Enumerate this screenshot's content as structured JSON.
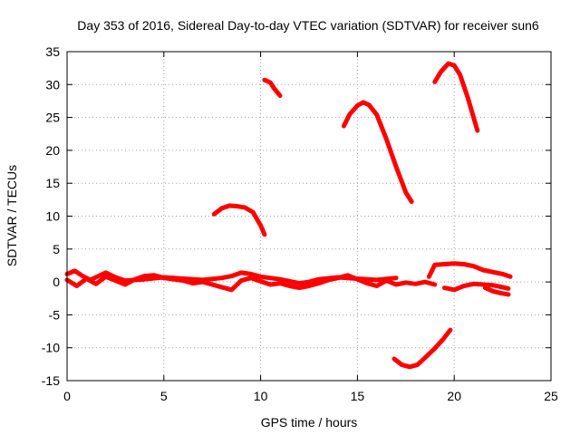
{
  "chart_data": {
    "type": "line",
    "title": "Day 353 of 2016, Sidereal Day-to-day VTEC variation (SDTVAR) for receiver sun6",
    "xlabel": "GPS time / hours",
    "ylabel": "SDTVAR / TECUs",
    "xlim": [
      0,
      25
    ],
    "ylim": [
      -15,
      35
    ],
    "xticks": [
      0,
      5,
      10,
      15,
      20,
      25
    ],
    "yticks": [
      -15,
      -10,
      -5,
      0,
      5,
      10,
      15,
      20,
      25,
      30,
      35
    ],
    "grid": true,
    "series_color": "#ff0000",
    "series": [
      {
        "name": "arc-baseline-a",
        "points": [
          [
            0,
            0.3
          ],
          [
            0.5,
            -0.6
          ],
          [
            1,
            0.5
          ],
          [
            1.5,
            -0.3
          ],
          [
            2,
            0.8
          ],
          [
            2.5,
            0.2
          ],
          [
            3,
            -0.4
          ],
          [
            3.5,
            0.4
          ],
          [
            4,
            0.9
          ],
          [
            4.5,
            1.0
          ],
          [
            5,
            0.6
          ],
          [
            5.5,
            0.4
          ],
          [
            6,
            0.2
          ],
          [
            6.5,
            -0.2
          ],
          [
            7,
            0.0
          ],
          [
            7.5,
            -0.4
          ],
          [
            8,
            -0.8
          ],
          [
            8.5,
            -1.2
          ],
          [
            9,
            0.2
          ],
          [
            9.5,
            0.6
          ],
          [
            10,
            0.1
          ],
          [
            10.5,
            -0.4
          ],
          [
            11,
            -0.2
          ],
          [
            11.5,
            -0.6
          ],
          [
            12,
            -0.9
          ],
          [
            12.5,
            -0.6
          ],
          [
            13,
            -0.2
          ],
          [
            13.5,
            0.3
          ],
          [
            14,
            0.6
          ],
          [
            14.5,
            1.0
          ],
          [
            15,
            0.4
          ],
          [
            15.5,
            -0.2
          ],
          [
            16,
            -0.6
          ],
          [
            16.5,
            0.2
          ],
          [
            17,
            -0.4
          ],
          [
            17.5,
            -0.1
          ],
          [
            18,
            -0.3
          ],
          [
            18.5,
            0.0
          ],
          [
            19,
            -0.4
          ]
        ]
      },
      {
        "name": "arc-baseline-b",
        "points": [
          [
            0,
            1.2
          ],
          [
            0.4,
            1.7
          ],
          [
            0.8,
            0.9
          ],
          [
            1.2,
            0.3
          ],
          [
            2,
            1.4
          ],
          [
            2.5,
            0.7
          ],
          [
            3,
            0.2
          ],
          [
            4,
            0.4
          ],
          [
            5,
            0.7
          ],
          [
            6,
            0.5
          ],
          [
            7,
            0.3
          ],
          [
            8,
            0.6
          ],
          [
            8.5,
            0.9
          ],
          [
            9,
            1.4
          ],
          [
            9.5,
            1.2
          ],
          [
            10,
            0.8
          ],
          [
            11,
            0.4
          ],
          [
            12,
            -0.2
          ],
          [
            12.5,
            0.0
          ],
          [
            13,
            0.4
          ],
          [
            14,
            0.7
          ],
          [
            15,
            0.5
          ],
          [
            16,
            0.3
          ],
          [
            17,
            0.6
          ]
        ]
      },
      {
        "name": "arc-19-23-upper",
        "points": [
          [
            18.7,
            0.8
          ],
          [
            19,
            2.6
          ],
          [
            19.5,
            2.7
          ],
          [
            20,
            2.8
          ],
          [
            20.5,
            2.7
          ],
          [
            21,
            2.4
          ],
          [
            21.5,
            1.8
          ],
          [
            22,
            1.5
          ],
          [
            22.5,
            1.2
          ],
          [
            22.9,
            0.8
          ]
        ]
      },
      {
        "name": "arc-19-23-lower",
        "points": [
          [
            19.5,
            -0.9
          ],
          [
            20,
            -1.2
          ],
          [
            20.5,
            -0.6
          ],
          [
            21,
            -0.3
          ],
          [
            21.5,
            -0.4
          ],
          [
            22,
            -0.5
          ],
          [
            22.5,
            -0.8
          ],
          [
            22.8,
            -1.0
          ]
        ]
      },
      {
        "name": "arc-19-23-dip",
        "points": [
          [
            21.6,
            -0.9
          ],
          [
            22,
            -1.4
          ],
          [
            22.4,
            -1.7
          ],
          [
            22.8,
            -1.9
          ]
        ]
      },
      {
        "name": "arc-8-10",
        "points": [
          [
            7.6,
            10.3
          ],
          [
            8,
            11.2
          ],
          [
            8.4,
            11.6
          ],
          [
            8.8,
            11.5
          ],
          [
            9.2,
            11.3
          ],
          [
            9.6,
            10.6
          ],
          [
            10.0,
            8.6
          ],
          [
            10.2,
            7.2
          ]
        ]
      },
      {
        "name": "arc-10-11",
        "points": [
          [
            10.2,
            30.7
          ],
          [
            10.5,
            30.3
          ],
          [
            10.7,
            29.4
          ],
          [
            11.0,
            28.3
          ]
        ]
      },
      {
        "name": "arc-14-18",
        "points": [
          [
            14.3,
            23.7
          ],
          [
            14.6,
            25.5
          ],
          [
            15.0,
            26.8
          ],
          [
            15.3,
            27.3
          ],
          [
            15.6,
            26.9
          ],
          [
            16.0,
            25.4
          ],
          [
            16.5,
            21.7
          ],
          [
            17.0,
            17.5
          ],
          [
            17.5,
            13.6
          ],
          [
            17.8,
            12.2
          ]
        ]
      },
      {
        "name": "arc-19-21",
        "points": [
          [
            19.0,
            30.4
          ],
          [
            19.3,
            31.9
          ],
          [
            19.7,
            33.2
          ],
          [
            20.0,
            32.9
          ],
          [
            20.3,
            31.5
          ],
          [
            20.7,
            28.0
          ],
          [
            21.0,
            25.0
          ],
          [
            21.2,
            23.0
          ]
        ]
      },
      {
        "name": "arc-17-20-negative",
        "points": [
          [
            16.9,
            -11.7
          ],
          [
            17.3,
            -12.6
          ],
          [
            17.7,
            -12.9
          ],
          [
            18.1,
            -12.6
          ],
          [
            18.5,
            -11.5
          ],
          [
            19.0,
            -10.1
          ],
          [
            19.4,
            -8.8
          ],
          [
            19.8,
            -7.3
          ]
        ]
      }
    ]
  }
}
